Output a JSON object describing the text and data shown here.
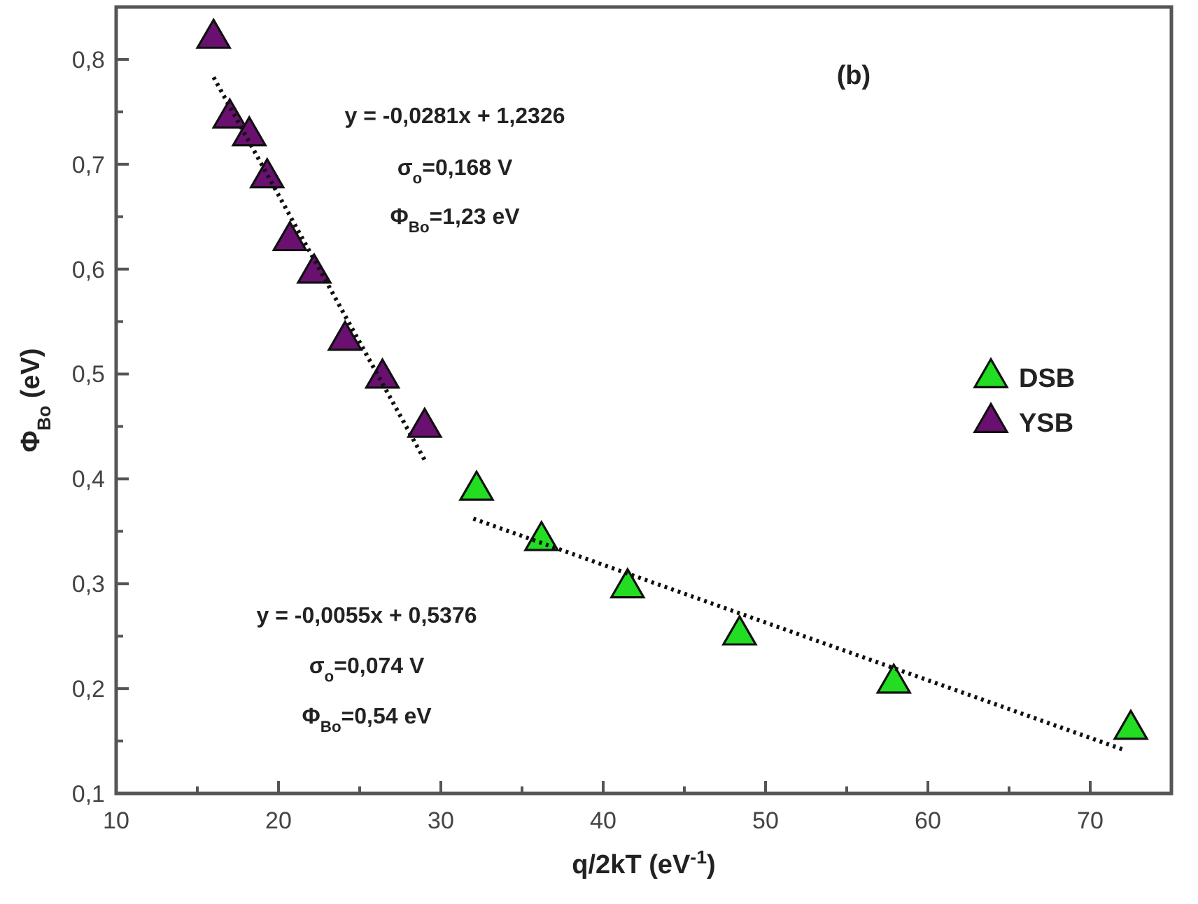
{
  "chart_data": {
    "type": "scatter",
    "xlabel": "q/2kT (eV$^{-1}$)",
    "ylabel": "Φ$_{Bo}$ (eV)",
    "annotations": [
      "(b)",
      "y = -0,0281x + 1,2326",
      "σ$_{o}$=0,168 V",
      "Φ$_{Bo}$=1,23 eV",
      "y = -0,0055x + 0,5376",
      "σ$_{o}$=0,074 V",
      "Φ$_{Bo}$=0,54 eV"
    ],
    "xlim": [
      10,
      75
    ],
    "ylim": [
      0.1,
      0.85
    ],
    "xticks": [
      10,
      {
        "value": 15,
        "label": null
      },
      20,
      {
        "value": 25,
        "label": null
      },
      30,
      {
        "value": 35,
        "label": null
      },
      40,
      {
        "value": 45,
        "label": null
      },
      50,
      {
        "value": 55,
        "label": null
      },
      60,
      {
        "value": 65,
        "label": null
      },
      70
    ],
    "yticks": [
      {
        "value": 0.1,
        "label": "0,1"
      },
      {
        "value": 0.15,
        "label": null
      },
      {
        "value": 0.2,
        "label": "0,2"
      },
      {
        "value": 0.25,
        "label": null
      },
      {
        "value": 0.3,
        "label": "0,3"
      },
      {
        "value": 0.35,
        "label": null
      },
      {
        "value": 0.4,
        "label": "0,4"
      },
      {
        "value": 0.45,
        "label": null
      },
      {
        "value": 0.5,
        "label": "0,5"
      },
      {
        "value": 0.55,
        "label": null
      },
      {
        "value": 0.6,
        "label": "0,6"
      },
      {
        "value": 0.65,
        "label": null
      },
      {
        "value": 0.7,
        "label": "0,7"
      },
      {
        "value": 0.75,
        "label": null
      },
      {
        "value": 0.8,
        "label": "0,8"
      }
    ],
    "grid": false,
    "legend": "right",
    "marker": "triangle",
    "series": [
      {
        "name": "DSB",
        "color": "#22dd22",
        "x": [
          32.2,
          36.2,
          41.5,
          48.4,
          57.9,
          72.5
        ],
        "values": [
          0.389,
          0.341,
          0.296,
          0.251,
          0.205,
          0.161
        ]
      },
      {
        "name": "YSB",
        "color": "#6a1070",
        "x": [
          16.0,
          17.0,
          18.2,
          19.3,
          20.7,
          22.2,
          24.1,
          26.4,
          29.0
        ],
        "values": [
          0.82,
          0.744,
          0.727,
          0.687,
          0.627,
          0.596,
          0.532,
          0.496,
          0.449
        ]
      },
      {
        "type": "line",
        "color": "#111111",
        "line_style": "dotted",
        "marker": "none",
        "x": [
          16,
          29
        ],
        "values": [
          0.783,
          0.418
        ]
      },
      {
        "type": "line",
        "color": "#111111",
        "line_style": "dotted",
        "marker": "none",
        "x": [
          32,
          72
        ],
        "values": [
          0.362,
          0.142
        ]
      }
    ]
  }
}
